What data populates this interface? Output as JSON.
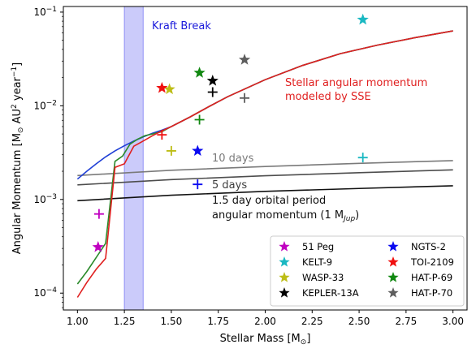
{
  "chart_data": {
    "type": "line",
    "xlabel": "Stellar Mass [M",
    "xlabel_sub": "⊙",
    "xlabel_close": "]",
    "ylabel": "Angular Momentum [M",
    "ylabel_sub": "⊙",
    "ylabel_mid": " AU",
    "ylabel_sup2": "2",
    "ylabel_mid2": " year",
    "ylabel_sup": "−1",
    "ylabel_close": "]",
    "xlim": [
      0.925,
      3.075
    ],
    "ylim_log10": [
      -4.18,
      -0.94
    ],
    "xticks": [
      {
        "v": 1.0,
        "label": "1.00"
      },
      {
        "v": 1.25,
        "label": "1.25"
      },
      {
        "v": 1.5,
        "label": "1.50"
      },
      {
        "v": 1.75,
        "label": "1.75"
      },
      {
        "v": 2.0,
        "label": "2.00"
      },
      {
        "v": 2.25,
        "label": "2.25"
      },
      {
        "v": 2.5,
        "label": "2.50"
      },
      {
        "v": 2.75,
        "label": "2.75"
      },
      {
        "v": 3.0,
        "label": "3.00"
      }
    ],
    "yticks": [
      {
        "exp": -4,
        "base": "10",
        "sup": "−4"
      },
      {
        "exp": -3,
        "base": "10",
        "sup": "−3"
      },
      {
        "exp": -2,
        "base": "10",
        "sup": "−2"
      },
      {
        "exp": -1,
        "base": "10",
        "sup": "−1"
      }
    ],
    "kraft_break": {
      "x0": 1.25,
      "x1": 1.35,
      "label": "Kraft Break",
      "color": "#1a1adb"
    },
    "annotations": {
      "sse_line1": "Stellar angular momentum",
      "sse_line2": "modeled by SSE",
      "days10": "10 days",
      "days5": "5 days",
      "day15_line1": "1.5 day orbital period",
      "day15_line2a": "angular momentum (1 M",
      "day15_line2sub": "Jup",
      "day15_line2b": ")"
    },
    "series": [
      {
        "kind": "sse_blue",
        "color": "#1f3fd6",
        "x": [
          1.0,
          1.05,
          1.1,
          1.15,
          1.2,
          1.25,
          1.3,
          1.35,
          1.4,
          1.45,
          1.5,
          1.6,
          1.7,
          1.8,
          2.0,
          2.2,
          2.4,
          2.6,
          2.8,
          3.0
        ],
        "y": [
          0.00165,
          0.002,
          0.0024,
          0.00285,
          0.0033,
          0.00375,
          0.0042,
          0.00465,
          0.0051,
          0.0055,
          0.006,
          0.0076,
          0.0098,
          0.0125,
          0.019,
          0.027,
          0.036,
          0.0445,
          0.0535,
          0.063
        ]
      },
      {
        "kind": "sse_green",
        "color": "#2a8a2a",
        "x": [
          1.0,
          1.05,
          1.1,
          1.15,
          1.2,
          1.24,
          1.28,
          1.32,
          1.36,
          1.4,
          1.45,
          1.5,
          1.6,
          1.7,
          1.8,
          2.0,
          2.2,
          2.4,
          2.6,
          2.8,
          3.0
        ],
        "y": [
          0.000125,
          0.00017,
          0.00024,
          0.00034,
          0.00255,
          0.0029,
          0.0039,
          0.0044,
          0.0048,
          0.005,
          0.0053,
          0.006,
          0.0076,
          0.0098,
          0.0125,
          0.019,
          0.027,
          0.036,
          0.0445,
          0.0535,
          0.063
        ]
      },
      {
        "kind": "sse_red",
        "color": "#e02020",
        "x": [
          1.0,
          1.05,
          1.1,
          1.15,
          1.2,
          1.25,
          1.3,
          1.35,
          1.4,
          1.45,
          1.5,
          1.6,
          1.7,
          1.8,
          2.0,
          2.2,
          2.4,
          2.6,
          2.8,
          3.0
        ],
        "y": [
          9e-05,
          0.00013,
          0.00018,
          0.000235,
          0.0022,
          0.0024,
          0.0037,
          0.0042,
          0.0048,
          0.0054,
          0.006,
          0.0076,
          0.0098,
          0.0125,
          0.019,
          0.027,
          0.036,
          0.0445,
          0.0535,
          0.063
        ]
      },
      {
        "kind": "orbit_10d",
        "color": "#7a7a7a",
        "x": [
          1.0,
          1.5,
          2.0,
          2.5,
          3.0
        ],
        "y": [
          0.0018,
          0.00205,
          0.00225,
          0.00243,
          0.0026
        ]
      },
      {
        "kind": "orbit_5d",
        "color": "#4d4d4d",
        "x": [
          1.0,
          1.5,
          2.0,
          2.5,
          3.0
        ],
        "y": [
          0.00143,
          0.00163,
          0.00179,
          0.00193,
          0.00207
        ]
      },
      {
        "kind": "orbit_15d",
        "color": "#111111",
        "x": [
          1.0,
          1.5,
          2.0,
          2.5,
          3.0
        ],
        "y": [
          0.00097,
          0.00111,
          0.00122,
          0.00131,
          0.0014
        ]
      }
    ],
    "points": [
      {
        "name": "51 Peg",
        "color": "#c000c0",
        "star_x": 1.11,
        "star_y": 0.00031,
        "plus_x": 1.115,
        "plus_y": 0.0007
      },
      {
        "name": "KELT-9",
        "color": "#1ab8c2",
        "star_x": 2.52,
        "star_y": 0.083,
        "plus_x": 2.52,
        "plus_y": 0.0028
      },
      {
        "name": "WASP-33",
        "color": "#bdbd16",
        "star_x": 1.49,
        "star_y": 0.015,
        "plus_x": 1.5,
        "plus_y": 0.0033
      },
      {
        "name": "KEPLER-13A",
        "color": "#000000",
        "star_x": 1.72,
        "star_y": 0.0185,
        "plus_x": 1.72,
        "plus_y": 0.014
      },
      {
        "name": "NGTS-2",
        "color": "#0a0af0",
        "star_x": 1.64,
        "star_y": 0.0033,
        "plus_x": 1.64,
        "plus_y": 0.00145
      },
      {
        "name": "TOI-2109",
        "color": "#f01010",
        "star_x": 1.45,
        "star_y": 0.0155,
        "plus_x": 1.45,
        "plus_y": 0.0049
      },
      {
        "name": "HAT-P-69",
        "color": "#118811",
        "star_x": 1.65,
        "star_y": 0.0225,
        "plus_x": 1.65,
        "plus_y": 0.0071
      },
      {
        "name": "HAT-P-70",
        "color": "#5e5e5e",
        "star_x": 1.89,
        "star_y": 0.031,
        "plus_x": 1.89,
        "plus_y": 0.0121
      }
    ]
  }
}
